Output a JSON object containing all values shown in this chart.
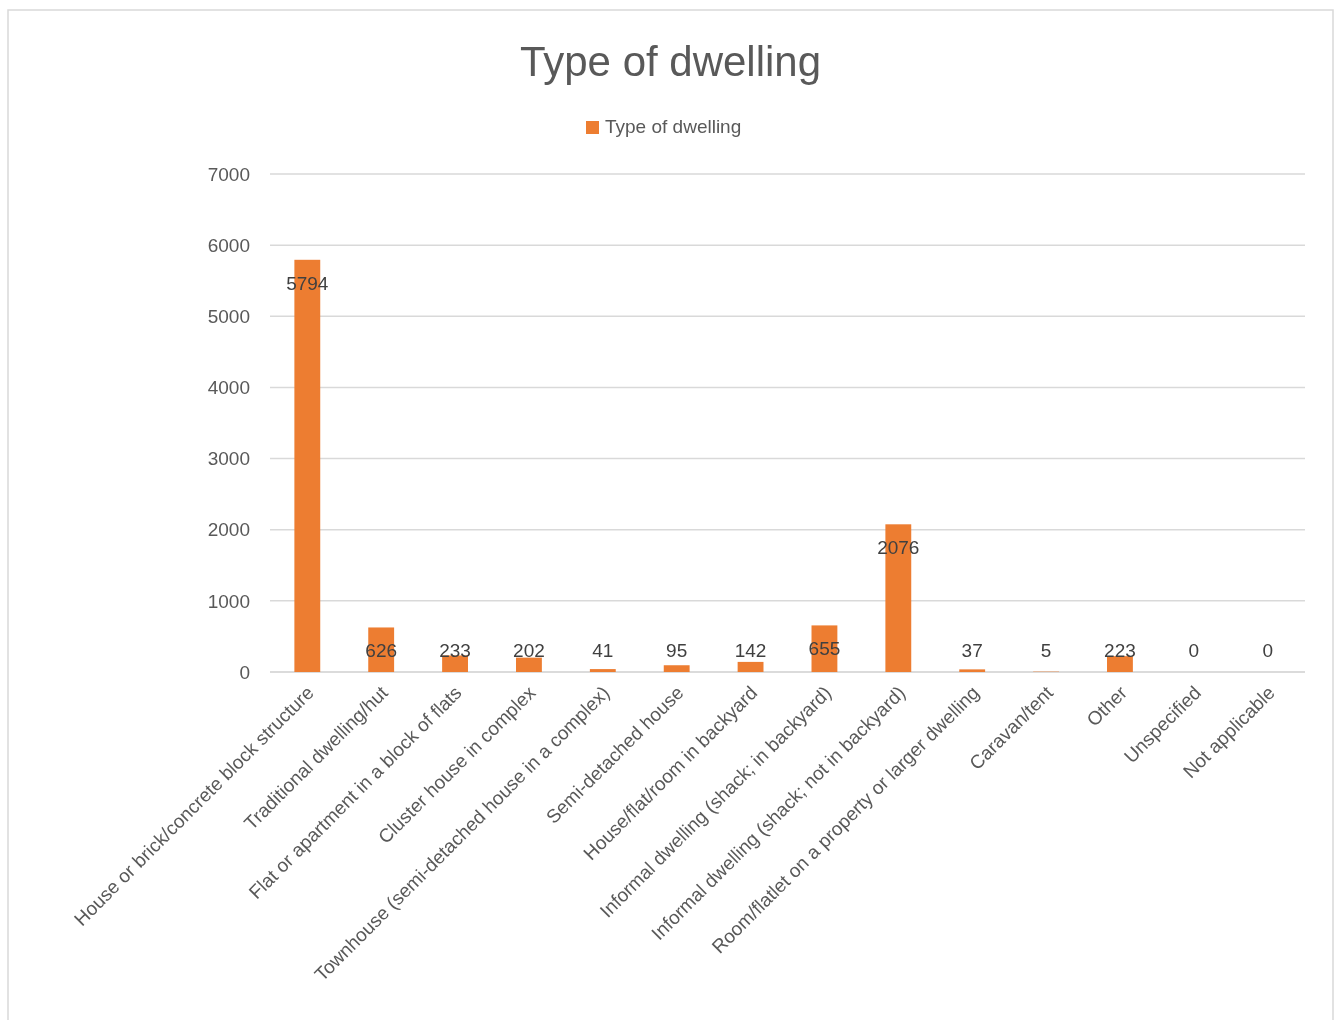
{
  "chart_data": {
    "type": "bar",
    "title": "Type of dwelling",
    "categories": [
      "House or brick/concrete block structure",
      "Traditional dwelling/hut",
      "Flat or apartment in a block of flats",
      "Cluster house in complex",
      "Townhouse (semi-detached house in a complex)",
      "Semi-detached house",
      "House/flat/room in backyard",
      "Informal dwelling (shack; in backyard)",
      "Informal dwelling (shack; not in backyard)",
      "Room/flatlet on a property or larger dwelling",
      "Caravan/tent",
      "Other",
      "Unspecified",
      "Not applicable"
    ],
    "series": [
      {
        "name": "Type of dwelling",
        "color": "#ed7d31",
        "values": [
          5794,
          626,
          233,
          202,
          41,
          95,
          142,
          655,
          2076,
          37,
          5,
          223,
          0,
          0
        ]
      }
    ],
    "ylim": [
      0,
      7000
    ],
    "yticks": [
      0,
      1000,
      2000,
      3000,
      4000,
      5000,
      6000,
      7000
    ],
    "grid": "y",
    "legend": "top",
    "data_labels": true
  }
}
